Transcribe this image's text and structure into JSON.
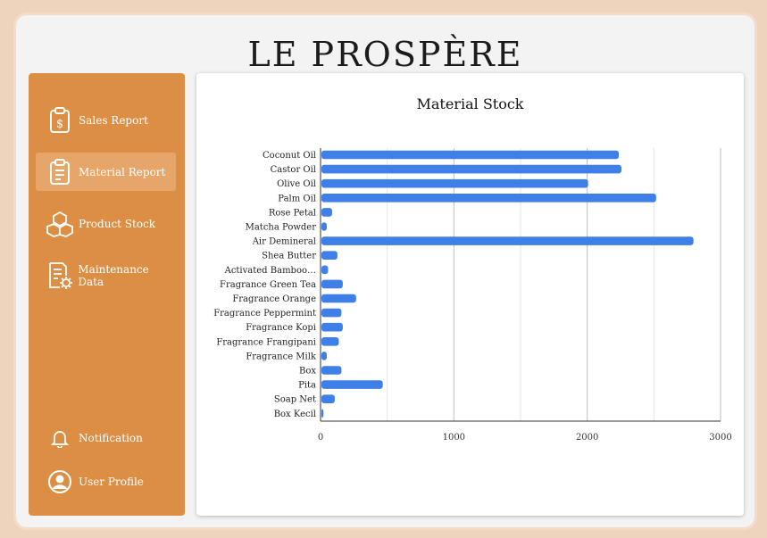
{
  "brand": "LE PROSPÈRE",
  "sidebar": {
    "items": [
      {
        "label": "Sales Report",
        "icon": "clipboard-dollar-icon"
      },
      {
        "label": "Material Report",
        "icon": "clipboard-list-icon"
      },
      {
        "label": "Product Stock",
        "icon": "boxes-icon"
      },
      {
        "label": "Maintenance Data",
        "icon": "document-gear-icon"
      }
    ],
    "bottom_items": [
      {
        "label": "Notification",
        "icon": "bell-icon"
      },
      {
        "label": "User Profile",
        "icon": "user-circle-icon"
      }
    ]
  },
  "colors": {
    "sidebar": "#dc8f44",
    "active": "#e7a669",
    "bar": "#3f7fe8"
  },
  "chart_data": {
    "type": "bar",
    "orientation": "horizontal",
    "title": "Material Stock",
    "xlabel": "",
    "ylabel": "",
    "categories": [
      "Coconut Oil",
      "Castor Oil",
      "Olive Oil",
      "Palm Oil",
      "Rose Petal",
      "Matcha Powder",
      "Air Demineral",
      "Shea Butter",
      "Activated Bamboo…",
      "Fragrance Green Tea",
      "Fragrance Orange",
      "Fragrance Peppermint",
      "Fragrance Kopi",
      "Fragrance Frangipani",
      "Fragrance Milk",
      "Box",
      "Pita",
      "Soap Net",
      "Box Kecil"
    ],
    "values": [
      2230,
      2250,
      2000,
      2510,
      80,
      40,
      2790,
      120,
      50,
      160,
      260,
      150,
      160,
      130,
      40,
      150,
      460,
      100,
      15
    ],
    "xlim": [
      0,
      3000
    ],
    "ticks": [
      "0",
      "1000",
      "2000",
      "3000"
    ],
    "grid": true
  }
}
